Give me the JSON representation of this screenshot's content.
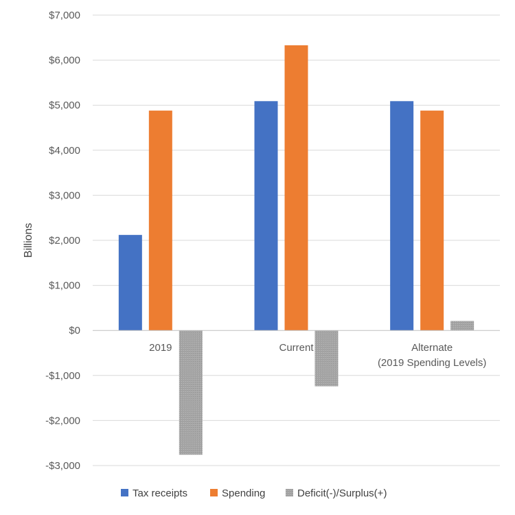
{
  "chart_data": {
    "type": "bar",
    "title": "",
    "xlabel": "",
    "ylabel": "Billions",
    "ylim": [
      -3000,
      7000
    ],
    "y_ticks": [
      7000,
      6000,
      5000,
      4000,
      3000,
      2000,
      1000,
      0,
      -1000,
      -2000,
      -3000
    ],
    "y_tick_labels": [
      "$7,000",
      "$6,000",
      "$5,000",
      "$4,000",
      "$3,000",
      "$2,000",
      "$1,000",
      "$0",
      "-$1,000",
      "-$2,000",
      "-$3,000"
    ],
    "grid": true,
    "legend_position": "bottom",
    "categories": [
      [
        "2019"
      ],
      [
        "Current"
      ],
      [
        "Alternate",
        "(2019 Spending Levels)"
      ]
    ],
    "series": [
      {
        "name": "Tax receipts",
        "color": "#4472C4",
        "values": [
          2120,
          5090,
          5090
        ]
      },
      {
        "name": "Spending",
        "color": "#ED7D31",
        "values": [
          4880,
          6330,
          4880
        ]
      },
      {
        "name": "Deficit(-)/Surplus(+)",
        "color": "#A5A5A5",
        "values": [
          -2760,
          -1240,
          210
        ]
      }
    ]
  }
}
